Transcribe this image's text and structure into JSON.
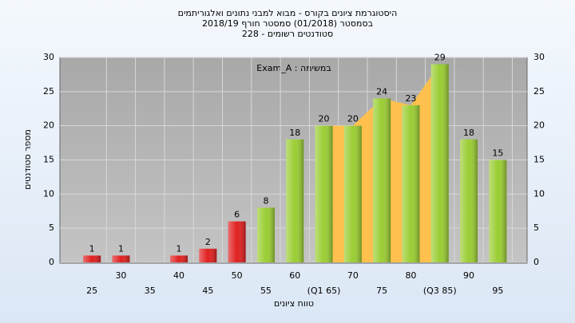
{
  "chart_data": {
    "type": "bar",
    "title": [
      "היסטוגרמת ציונים בקורס - מבוא למבני נתונים ואלגוריתמים",
      "בסמסטר  (01/2018)  סמסטר חורף 2018/19",
      "סטודנטים רשומים - 228"
    ],
    "annotation": "במשימה : Exam_A",
    "x_label": "טווח ציונים",
    "y_label": "מספר סטודנטים",
    "categories": [
      "25",
      "30",
      "35",
      "40",
      "45",
      "50",
      "55",
      "60",
      "(Q1 65)",
      "70",
      "75",
      "80",
      "(Q3 85)",
      "90",
      "95"
    ],
    "values": [
      1,
      1,
      null,
      1,
      2,
      6,
      8,
      18,
      20,
      20,
      24,
      23,
      29,
      18,
      15
    ],
    "colors": [
      "#e02020",
      "#e02020",
      "#e02020",
      "#e02020",
      "#e02020",
      "#e02020",
      "#9acd32",
      "#9acd32",
      "#9acd32",
      "#9acd32",
      "#9acd32",
      "#9acd32",
      "#9acd32",
      "#9acd32",
      "#9acd32"
    ],
    "area_color": "#ffc04d",
    "ylim": [
      0,
      30
    ],
    "yticks": [
      0,
      5,
      10,
      15,
      20,
      25,
      30
    ],
    "grid": true
  }
}
